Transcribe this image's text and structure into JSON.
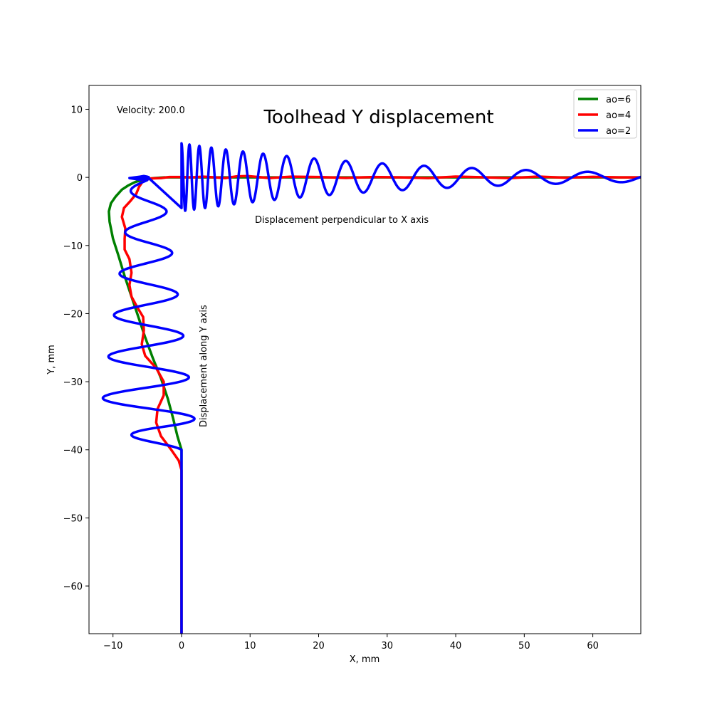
{
  "chart_data": {
    "type": "line",
    "title": "Toolhead Y displacement",
    "xlabel": "X, mm",
    "ylabel": "Y, mm",
    "xlim": [
      -13.5,
      67
    ],
    "ylim": [
      -67,
      13.5
    ],
    "xticks": [
      -10,
      0,
      10,
      20,
      30,
      40,
      50,
      60
    ],
    "yticks": [
      10,
      0,
      -10,
      -20,
      -30,
      -40,
      -50,
      -60
    ],
    "grid": false,
    "legend_position": "upper-right",
    "annotations": {
      "velocity": "Velocity: 200.0",
      "perpendicular": "Displacement perpendicular to X axis",
      "along": "Displacement along Y axis"
    },
    "reference_line": {
      "x": [
        0,
        0
      ],
      "y": [
        -67,
        -40
      ]
    },
    "series": [
      {
        "name": "ao=6",
        "color": "#008000",
        "points": [
          [
            0,
            -67
          ],
          [
            0,
            -40
          ],
          [
            -0.6,
            -38
          ],
          [
            -1.2,
            -35.5
          ],
          [
            -2,
            -32.5
          ],
          [
            -3,
            -29.5
          ],
          [
            -4.2,
            -26.5
          ],
          [
            -5.3,
            -23.5
          ],
          [
            -6.3,
            -20.5
          ],
          [
            -7.3,
            -17.5
          ],
          [
            -8.3,
            -14.5
          ],
          [
            -9.2,
            -11.5
          ],
          [
            -10,
            -9
          ],
          [
            -10.5,
            -6.5
          ],
          [
            -10.6,
            -5
          ],
          [
            -10.3,
            -3.8
          ],
          [
            -9.6,
            -2.8
          ],
          [
            -8.7,
            -1.8
          ],
          [
            -7.8,
            -1.2
          ],
          [
            -6.8,
            -0.7
          ],
          [
            -5.5,
            -0.3
          ],
          [
            -4,
            -0.1
          ],
          [
            -2.5,
            0
          ],
          [
            0,
            0
          ],
          [
            10,
            0
          ],
          [
            20,
            0
          ],
          [
            30,
            0
          ],
          [
            67,
            0
          ]
        ]
      },
      {
        "name": "ao=4",
        "color": "#ff0000",
        "points": [
          [
            0,
            -67
          ],
          [
            0,
            -43
          ],
          [
            -0.4,
            -41.6
          ],
          [
            -1.5,
            -40
          ],
          [
            -3,
            -38
          ],
          [
            -3.7,
            -36
          ],
          [
            -3.5,
            -34
          ],
          [
            -2.6,
            -32
          ],
          [
            -2.6,
            -30
          ],
          [
            -3.7,
            -28
          ],
          [
            -5.3,
            -26.2
          ],
          [
            -5.8,
            -24.5
          ],
          [
            -5.5,
            -22.5
          ],
          [
            -5.6,
            -20.5
          ],
          [
            -6.5,
            -19
          ],
          [
            -7.3,
            -17.5
          ],
          [
            -7.6,
            -15.8
          ],
          [
            -7.3,
            -14
          ],
          [
            -7.6,
            -12
          ],
          [
            -8.3,
            -10.6
          ],
          [
            -8.3,
            -9
          ],
          [
            -8.2,
            -7.5
          ],
          [
            -8.7,
            -5.8
          ],
          [
            -8.4,
            -4.5
          ],
          [
            -7.4,
            -3.4
          ],
          [
            -6.6,
            -2.4
          ],
          [
            -6.2,
            -1.4
          ],
          [
            -5.6,
            -0.5
          ],
          [
            -4.5,
            -0.15
          ],
          [
            -3,
            -0.1
          ],
          [
            -1.8,
            0.05
          ],
          [
            0,
            0.05
          ],
          [
            1.5,
            0
          ],
          [
            3.2,
            0.1
          ],
          [
            4.8,
            0
          ],
          [
            6.4,
            -0.1
          ],
          [
            8,
            0.15
          ],
          [
            9.6,
            0.2
          ],
          [
            11.2,
            0.05
          ],
          [
            12.8,
            -0.1
          ],
          [
            14.4,
            0
          ],
          [
            16,
            0.1
          ],
          [
            20,
            0.05
          ],
          [
            24,
            -0.08
          ],
          [
            28,
            0.05
          ],
          [
            32,
            0
          ],
          [
            36,
            -0.1
          ],
          [
            40,
            0.12
          ],
          [
            44,
            0.02
          ],
          [
            48,
            -0.1
          ],
          [
            52,
            0.12
          ],
          [
            56,
            -0.05
          ],
          [
            60,
            0.08
          ],
          [
            64,
            0
          ],
          [
            67,
            0
          ]
        ]
      }
    ],
    "blue_series": {
      "name": "ao=2",
      "color": "#0000ff",
      "vertical": {
        "y_start": -67,
        "y_turn": -40,
        "y_end": -0.4,
        "base_x": -5,
        "amplitude_start": 7.5,
        "amplitude_end": 2.2,
        "cycles": 6.5
      },
      "hook": [
        [
          -5,
          -0.4
        ],
        [
          -4.9,
          -0.1
        ],
        [
          -5.2,
          0.15
        ],
        [
          -6,
          0.1
        ],
        [
          -7.6,
          -0.1
        ],
        [
          -6,
          -0.35
        ],
        [
          -5.2,
          -0.2
        ],
        [
          -4.8,
          0.05
        ],
        [
          -5.5,
          0.2
        ],
        [
          -7.2,
          -0.1
        ],
        [
          -5,
          0.1
        ]
      ],
      "horizontal": {
        "x_start": 0,
        "x_end": 67,
        "amplitude_start": 5,
        "amplitude_end": 0.65,
        "period_start": 1.0,
        "period_end": 10.5
      }
    }
  }
}
